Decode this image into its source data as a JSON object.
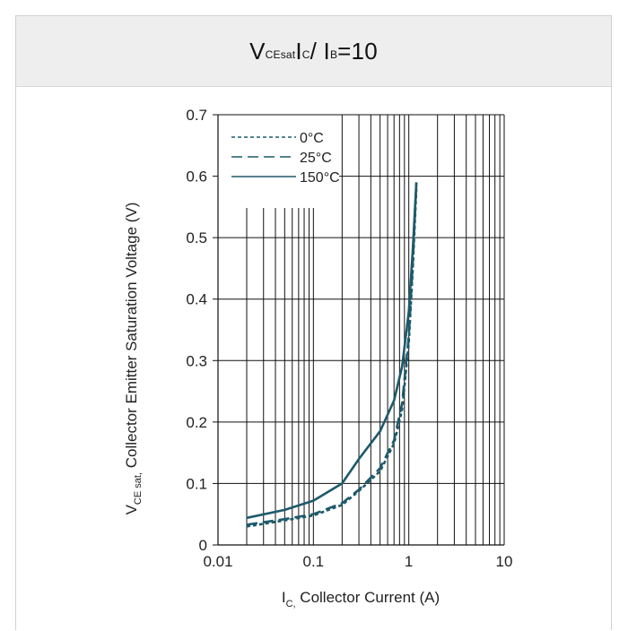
{
  "header": {
    "title_parts": [
      "V",
      "CEsat",
      " I",
      "C",
      " / I",
      "B",
      " =10"
    ]
  },
  "chart_data": {
    "type": "line",
    "x_scale": "log",
    "xlim": [
      0.01,
      10
    ],
    "ylim": [
      0,
      0.7
    ],
    "x_ticks": [
      "0.01",
      "0.1",
      "1",
      "10"
    ],
    "y_ticks": [
      "0",
      "0.1",
      "0.2",
      "0.3",
      "0.4",
      "0.5",
      "0.6",
      "0.7"
    ],
    "xlabel_parts": [
      "I",
      "C,",
      " Collector Current (A)"
    ],
    "ylabel_parts": [
      "V",
      "CE sat,",
      "  Collector Emitter Saturation Voltage (V)"
    ],
    "grid": true,
    "legend_position": "top-left",
    "series": [
      {
        "name": "0°C",
        "style": "dotted",
        "color": "#1d5a6b",
        "x": [
          0.02,
          0.05,
          0.1,
          0.2,
          0.3,
          0.5,
          0.7,
          0.85,
          1.0,
          1.1,
          1.2
        ],
        "y": [
          0.03,
          0.04,
          0.048,
          0.065,
          0.088,
          0.12,
          0.165,
          0.22,
          0.33,
          0.45,
          0.58
        ]
      },
      {
        "name": "25°C",
        "style": "dashed",
        "color": "#1d5a6b",
        "x": [
          0.02,
          0.05,
          0.1,
          0.2,
          0.3,
          0.5,
          0.7,
          0.85,
          1.0,
          1.1,
          1.2
        ],
        "y": [
          0.033,
          0.042,
          0.05,
          0.068,
          0.09,
          0.125,
          0.17,
          0.23,
          0.34,
          0.46,
          0.59
        ]
      },
      {
        "name": "150°C",
        "style": "solid",
        "color": "#1d5a6b",
        "x": [
          0.02,
          0.05,
          0.1,
          0.2,
          0.3,
          0.5,
          0.7,
          0.85,
          1.0,
          1.1,
          1.2
        ],
        "y": [
          0.044,
          0.057,
          0.072,
          0.1,
          0.14,
          0.185,
          0.235,
          0.29,
          0.38,
          0.48,
          0.59
        ]
      }
    ]
  }
}
